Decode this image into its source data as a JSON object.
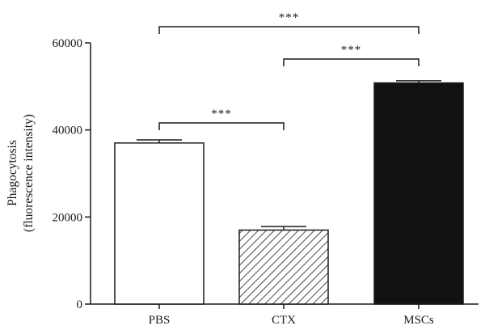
{
  "chart_data": {
    "type": "bar",
    "title": "",
    "xlabel": "",
    "ylabel_lines": [
      "Phagocytosis",
      "(fluorescence intensity)"
    ],
    "ylim": [
      0,
      60000
    ],
    "y_ticks": [
      0,
      20000,
      40000,
      60000
    ],
    "categories": [
      "PBS",
      "CTX",
      "MSCs"
    ],
    "values": [
      37000,
      17000,
      50800
    ],
    "errors": [
      700,
      800,
      500
    ],
    "bar_styles": [
      "white",
      "hatched",
      "black"
    ],
    "significance": [
      {
        "from": "PBS",
        "to": "CTX",
        "label": "***"
      },
      {
        "from": "CTX",
        "to": "MSCs",
        "label": "***"
      },
      {
        "from": "PBS",
        "to": "MSCs",
        "label": "***"
      }
    ]
  }
}
